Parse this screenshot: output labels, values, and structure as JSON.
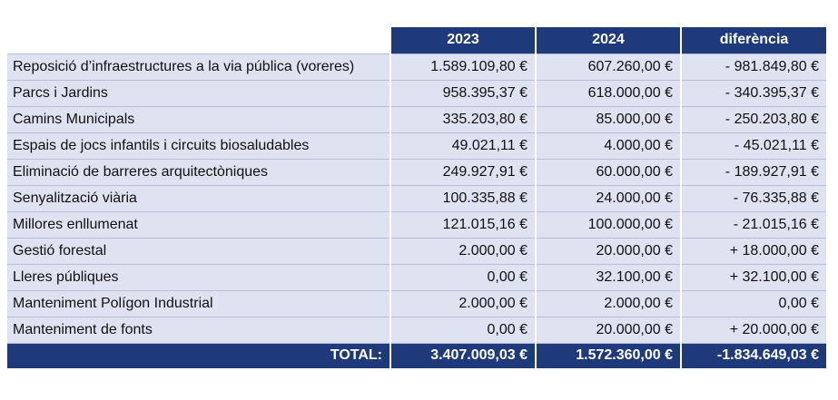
{
  "table": {
    "headers": [
      "2023",
      "2024",
      "diferència"
    ],
    "rows": [
      {
        "label": "Reposició d’infraestructures a la via pública (voreres)",
        "v2023": "1.589.109,80 €",
        "v2024": "607.260,00 €",
        "diff": "- 981.849,80 €"
      },
      {
        "label": "Parcs i Jardins",
        "v2023": "958.395,37 €",
        "v2024": "618.000,00 €",
        "diff": "- 340.395,37 €"
      },
      {
        "label": "Camins Municipals",
        "v2023": "335.203,80 €",
        "v2024": "85.000,00 €",
        "diff": "- 250.203,80 €"
      },
      {
        "label": "Espais de jocs infantils i circuits biosaludables",
        "v2023": "49.021,11 €",
        "v2024": "4.000,00 €",
        "diff": "- 45.021,11 €"
      },
      {
        "label": "Eliminació de barreres arquitectòniques",
        "v2023": "249.927,91 €",
        "v2024": "60.000,00 €",
        "diff": "- 189.927,91 €"
      },
      {
        "label": "Senyalització viària",
        "v2023": "100.335,88 €",
        "v2024": "24.000,00 €",
        "diff": "- 76.335,88 €"
      },
      {
        "label": "Millores enllumenat",
        "v2023": "121.015,16 €",
        "v2024": "100.000,00 €",
        "diff": "- 21.015,16 €"
      },
      {
        "label": "Gestió forestal",
        "v2023": "2.000,00 €",
        "v2024": "20.000,00 €",
        "diff": "+ 18.000,00 €"
      },
      {
        "label": "Lleres públiques",
        "v2023": "0,00 €",
        "v2024": "32.100,00 €",
        "diff": "+ 32.100,00 €"
      },
      {
        "label": "Manteniment Polígon Industrial",
        "v2023": "2.000,00 €",
        "v2024": "2.000,00 €",
        "diff": "0,00 €"
      },
      {
        "label": "Manteniment de fonts",
        "v2023": "0,00 €",
        "v2024": "20.000,00 €",
        "diff": "+ 20.000,00 €"
      }
    ],
    "total": {
      "label": "TOTAL:",
      "v2023": "3.407.009,03 €",
      "v2024": "1.572.360,00 €",
      "diff": "-1.834.649,03 €"
    }
  },
  "colors": {
    "header_bg": "#1f3a7a",
    "row_bg": "#dfe3f1",
    "header_text": "#ffffff"
  }
}
